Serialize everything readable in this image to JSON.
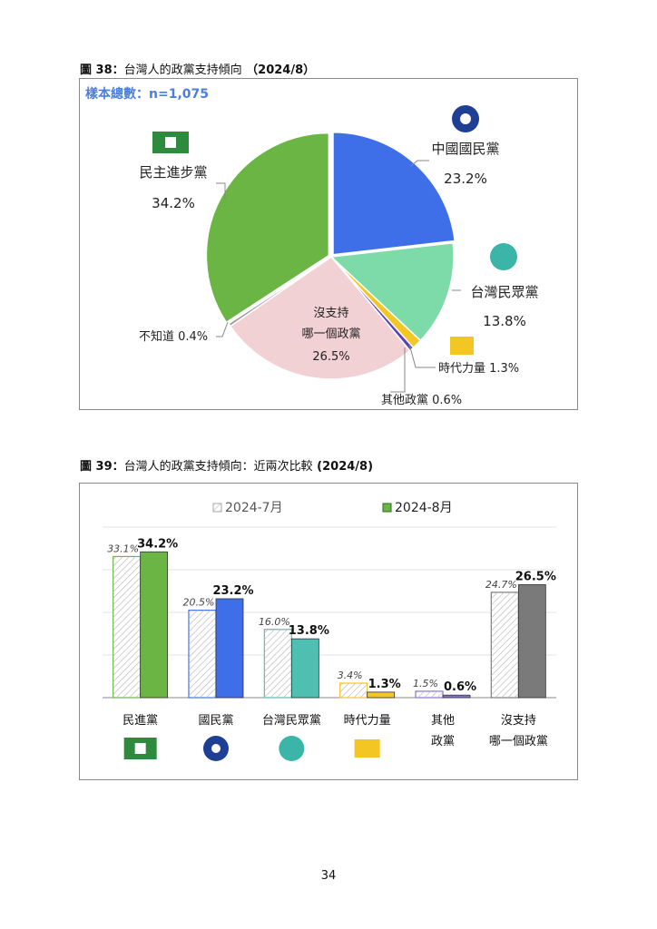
{
  "figure38": {
    "title_prefix": "圖 38：",
    "title_text": "台灣人的政黨支持傾向",
    "title_date": "（2024/8）",
    "sample_label": "樣本總數：n=1,075"
  },
  "figure39": {
    "title_prefix": "圖 39：",
    "title_text": "台灣人的政黨支持傾向：近兩次比較",
    "title_date": "(2024/8)"
  },
  "page_number": "34",
  "colors": {
    "dpp": "#6bb544",
    "kmt": "#3f6fe8",
    "tpp": "#7ddba9",
    "npp": "#f3c623",
    "other": "#5b3fb3",
    "none": "#f2d1d4",
    "unknown": "#9a9a9a",
    "tpp_bar": "#4fbfb2",
    "none_bar": "#7a7a7a"
  },
  "chart_data": [
    {
      "type": "pie",
      "title": "台灣人的政黨支持傾向",
      "slices": [
        {
          "label": "中國國民黨",
          "value": 23.2,
          "value_label": "23.2%",
          "color": "#3f6fe8"
        },
        {
          "label": "台灣民眾黨",
          "value": 13.8,
          "value_label": "13.8%",
          "color": "#7ddba9"
        },
        {
          "label": "時代力量",
          "value": 1.3,
          "value_label": "1.3%",
          "color": "#f3c623"
        },
        {
          "label": "其他政黨",
          "value": 0.6,
          "value_label": "0.6%",
          "color": "#5b3fb3"
        },
        {
          "label": "沒支持哪一個政黨",
          "value": 26.5,
          "value_label": "26.5%",
          "color": "#f2d1d4"
        },
        {
          "label": "不知道",
          "value": 0.4,
          "value_label": "0.4%",
          "color": "#9a9a9a"
        },
        {
          "label": "民主進步黨",
          "value": 34.2,
          "value_label": "34.2%",
          "color": "#6bb544"
        }
      ],
      "labels": {
        "kmt": [
          "中國國民黨",
          "23.2%"
        ],
        "tpp": [
          "台灣民眾黨",
          "13.8%"
        ],
        "npp": "時代力量 1.3%",
        "other": "其他政黨 0.6%",
        "none": [
          "沒支持",
          "哪一個政黨",
          "26.5%"
        ],
        "unknown": "不知道 0.4%",
        "dpp": [
          "民主進步黨",
          "34.2%"
        ]
      }
    },
    {
      "type": "bar",
      "title": "台灣人的政黨支持傾向：近兩次比較",
      "categories": [
        [
          "民進黨"
        ],
        [
          "國民黨"
        ],
        [
          "台灣民眾黨"
        ],
        [
          "時代力量"
        ],
        [
          "其他",
          "政黨"
        ],
        [
          "沒支持",
          "哪一個政黨"
        ]
      ],
      "series": [
        {
          "name": "2024-7月",
          "values": [
            33.1,
            20.5,
            16.0,
            3.4,
            1.5,
            24.7
          ],
          "labels": [
            "33.1%",
            "20.5%",
            "16.0%",
            "3.4%",
            "1.5%",
            "24.7%"
          ]
        },
        {
          "name": "2024-8月",
          "values": [
            34.2,
            23.2,
            13.8,
            1.3,
            0.6,
            26.5
          ],
          "labels": [
            "34.2%",
            "23.2%",
            "13.8%",
            "1.3%",
            "0.6%",
            "26.5%"
          ]
        }
      ],
      "bar_colors": [
        "#6bb544",
        "#3f6fe8",
        "#4fbfb2",
        "#f3c623",
        "#8a6fd8",
        "#7a7a7a"
      ],
      "legend_position": "top",
      "grid": true
    }
  ]
}
